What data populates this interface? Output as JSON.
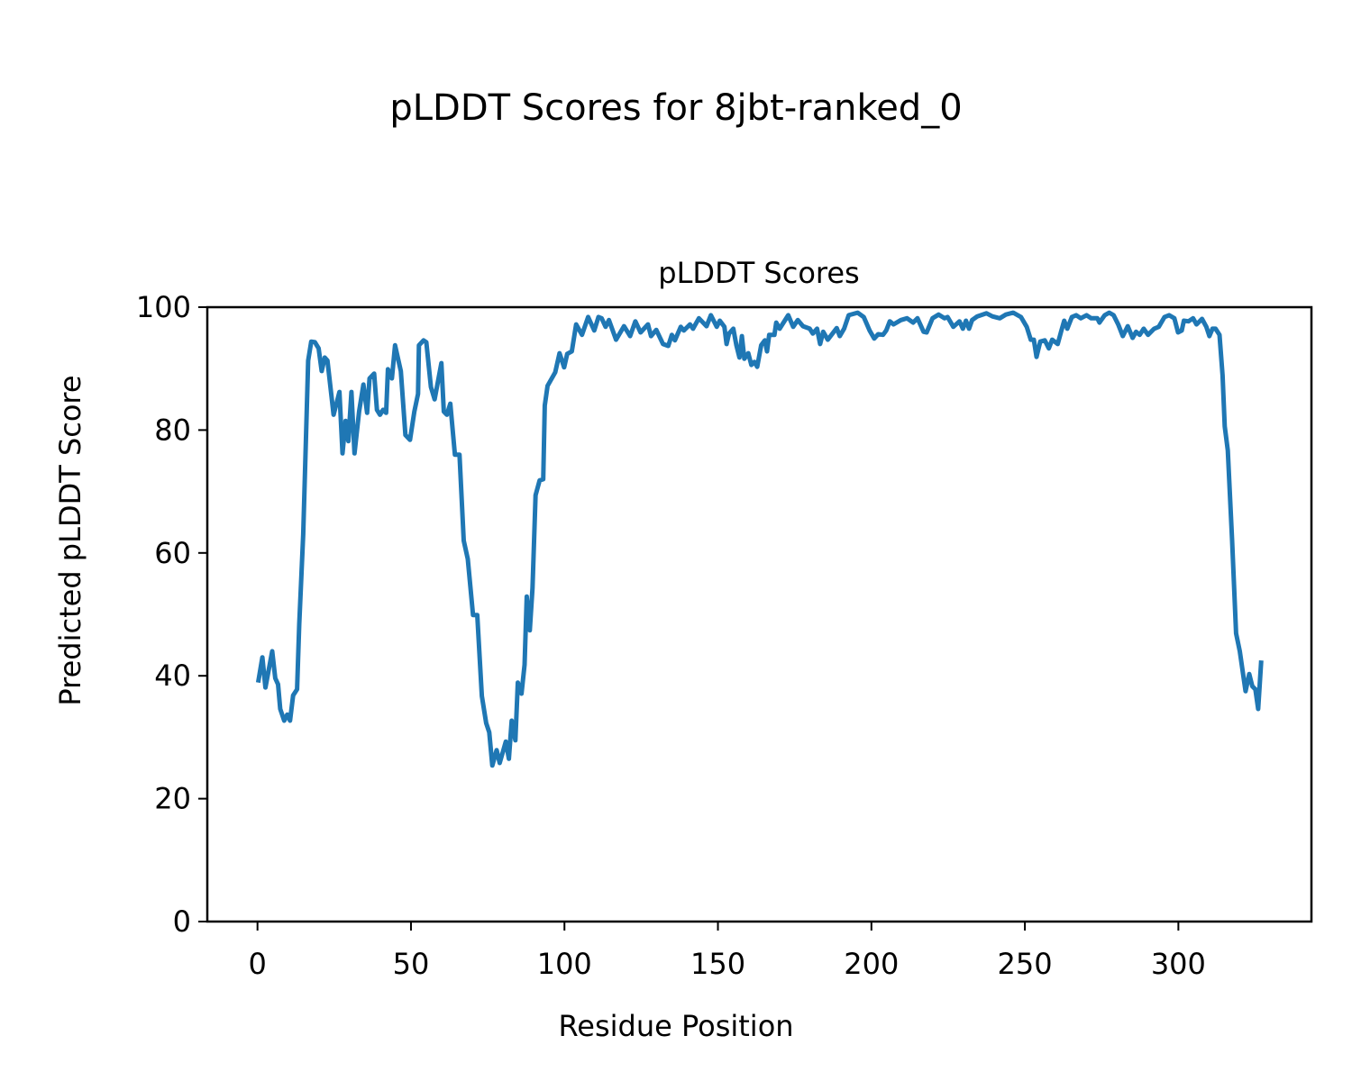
{
  "chart_data": {
    "type": "line",
    "title": "pLDDT Scores for 8jbt-ranked_0",
    "subtitle": "pLDDT Scores",
    "xlabel": "Residue Position",
    "ylabel": "Predicted pLDDT Score",
    "xlim": [
      -16.35,
      343.35
    ],
    "ylim": [
      0,
      100
    ],
    "xticks": [
      "0",
      "50",
      "100",
      "150",
      "200",
      "250",
      "300"
    ],
    "yticks": [
      "0",
      "20",
      "40",
      "60",
      "80",
      "100"
    ],
    "grid": false,
    "color": "#1f77b4",
    "series": [
      {
        "points": [
          [
            0.2,
            38.9
          ],
          [
            1.6,
            43
          ],
          [
            2.6,
            38.1
          ],
          [
            4.8,
            44
          ],
          [
            5.8,
            39.6
          ],
          [
            6.7,
            38.6
          ],
          [
            7.4,
            34.6
          ],
          [
            8.7,
            32.7
          ],
          [
            9.7,
            33.7
          ],
          [
            10.6,
            32.7
          ],
          [
            11.6,
            36.8
          ],
          [
            12.9,
            37.8
          ],
          [
            13.6,
            48.4
          ],
          [
            14.9,
            63
          ],
          [
            16,
            82.5
          ],
          [
            16.5,
            91.3
          ],
          [
            17.5,
            94.4
          ],
          [
            18.7,
            94.3
          ],
          [
            19.9,
            93.3
          ],
          [
            20.9,
            89.6
          ],
          [
            21.9,
            91.8
          ],
          [
            22.8,
            91.3
          ],
          [
            24.8,
            82.5
          ],
          [
            26.7,
            86.2
          ],
          [
            27.7,
            76.2
          ],
          [
            28.7,
            81.5
          ],
          [
            29.6,
            78.2
          ],
          [
            30.6,
            86.2
          ],
          [
            31.6,
            76.2
          ],
          [
            33.1,
            83
          ],
          [
            34.5,
            87.4
          ],
          [
            35.7,
            82.8
          ],
          [
            36.5,
            88.4
          ],
          [
            38,
            89.2
          ],
          [
            38.9,
            83.3
          ],
          [
            39.9,
            82.5
          ],
          [
            40.9,
            83.3
          ],
          [
            41.9,
            82.8
          ],
          [
            42.5,
            89.9
          ],
          [
            43.8,
            88.4
          ],
          [
            44.8,
            93.8
          ],
          [
            46.7,
            89.6
          ],
          [
            48.2,
            79.2
          ],
          [
            49.7,
            78.4
          ],
          [
            51.1,
            83
          ],
          [
            52.3,
            85.9
          ],
          [
            52.6,
            93.8
          ],
          [
            54.1,
            94.6
          ],
          [
            55,
            94.3
          ],
          [
            56.5,
            87
          ],
          [
            57.7,
            85
          ],
          [
            59.9,
            90.9
          ],
          [
            60.7,
            83
          ],
          [
            61.7,
            82.5
          ],
          [
            62.8,
            84.3
          ],
          [
            64.3,
            76
          ],
          [
            65.8,
            76
          ],
          [
            67.2,
            62
          ],
          [
            68.5,
            59
          ],
          [
            70.2,
            49.9
          ],
          [
            71.6,
            49.9
          ],
          [
            73.1,
            36.7
          ],
          [
            74.5,
            32.3
          ],
          [
            75.5,
            30.8
          ],
          [
            76.5,
            25.4
          ],
          [
            77.9,
            27.9
          ],
          [
            78.9,
            25.8
          ],
          [
            80.9,
            29.3
          ],
          [
            81.9,
            26.5
          ],
          [
            82.8,
            32.7
          ],
          [
            84,
            29.5
          ],
          [
            84.8,
            38.9
          ],
          [
            86,
            37.1
          ],
          [
            87,
            41.8
          ],
          [
            87.7,
            52.9
          ],
          [
            88.7,
            47.4
          ],
          [
            89.6,
            54.3
          ],
          [
            90.6,
            69.4
          ],
          [
            91.9,
            71.8
          ],
          [
            93.1,
            72
          ],
          [
            93.6,
            84
          ],
          [
            94.5,
            87.2
          ],
          [
            97,
            89.4
          ],
          [
            98.4,
            92.5
          ],
          [
            99.9,
            90.2
          ],
          [
            100.9,
            92.4
          ],
          [
            102.4,
            92.8
          ],
          [
            103.8,
            97.2
          ],
          [
            105.7,
            95.5
          ],
          [
            107.7,
            98.4
          ],
          [
            109.7,
            96.2
          ],
          [
            111.1,
            98.4
          ],
          [
            112.1,
            98.2
          ],
          [
            113.4,
            96.8
          ],
          [
            114.5,
            97.9
          ],
          [
            116.8,
            94.7
          ],
          [
            119.4,
            96.9
          ],
          [
            121.4,
            95.3
          ],
          [
            123.1,
            97.7
          ],
          [
            124.8,
            95.9
          ],
          [
            127.2,
            97.2
          ],
          [
            128.2,
            95.3
          ],
          [
            129.9,
            96.3
          ],
          [
            132.1,
            94
          ],
          [
            133.8,
            93.7
          ],
          [
            135,
            95.5
          ],
          [
            136,
            94.6
          ],
          [
            137.9,
            96.8
          ],
          [
            138.9,
            96.2
          ],
          [
            140.9,
            97.2
          ],
          [
            141.9,
            96.5
          ],
          [
            143.8,
            98.2
          ],
          [
            146.3,
            96.9
          ],
          [
            147.7,
            98.7
          ],
          [
            149.6,
            96.8
          ],
          [
            150.6,
            97.8
          ],
          [
            152.1,
            96.8
          ],
          [
            152.8,
            94
          ],
          [
            153.6,
            95.7
          ],
          [
            155,
            96.5
          ],
          [
            156,
            93.8
          ],
          [
            157,
            91.8
          ],
          [
            157.8,
            95.3
          ],
          [
            158.6,
            91.6
          ],
          [
            159.9,
            92.5
          ],
          [
            160.9,
            90.6
          ],
          [
            161.9,
            91.1
          ],
          [
            162.8,
            90.3
          ],
          [
            164.1,
            93.8
          ],
          [
            165.3,
            94.6
          ],
          [
            166,
            92.8
          ],
          [
            166.7,
            95.5
          ],
          [
            168.4,
            95.5
          ],
          [
            169,
            97.5
          ],
          [
            170.1,
            96.5
          ],
          [
            172.9,
            98.7
          ],
          [
            174.5,
            96.8
          ],
          [
            176,
            97.9
          ],
          [
            177.7,
            96.9
          ],
          [
            179.9,
            96.5
          ],
          [
            180.9,
            95.7
          ],
          [
            182.3,
            96.5
          ],
          [
            183.3,
            94
          ],
          [
            184.3,
            96
          ],
          [
            185.8,
            94.7
          ],
          [
            188.7,
            96.6
          ],
          [
            189.7,
            95.3
          ],
          [
            191.1,
            96.5
          ],
          [
            192.6,
            98.7
          ],
          [
            195.5,
            99.1
          ],
          [
            197.5,
            98.4
          ],
          [
            199.4,
            96.2
          ],
          [
            200.9,
            94.9
          ],
          [
            202.2,
            95.6
          ],
          [
            203.8,
            95.5
          ],
          [
            204.8,
            96.2
          ],
          [
            206,
            97.7
          ],
          [
            207.2,
            97.2
          ],
          [
            209.6,
            97.9
          ],
          [
            211.6,
            98.2
          ],
          [
            213.6,
            97.5
          ],
          [
            215,
            98.2
          ],
          [
            217,
            96
          ],
          [
            218,
            95.9
          ],
          [
            219.9,
            98.2
          ],
          [
            221.9,
            98.8
          ],
          [
            223.8,
            98.2
          ],
          [
            224.8,
            98.4
          ],
          [
            226.7,
            96.8
          ],
          [
            228.7,
            97.7
          ],
          [
            229.8,
            96.5
          ],
          [
            230.8,
            97.8
          ],
          [
            231.8,
            96.5
          ],
          [
            232.8,
            97.9
          ],
          [
            234.5,
            98.5
          ],
          [
            237.5,
            99
          ],
          [
            239.4,
            98.5
          ],
          [
            241.8,
            98.2
          ],
          [
            243.8,
            98.8
          ],
          [
            246.2,
            99.1
          ],
          [
            248.7,
            98.4
          ],
          [
            250.6,
            96.8
          ],
          [
            251.9,
            94.7
          ],
          [
            252.9,
            94.7
          ],
          [
            253.8,
            91.9
          ],
          [
            255,
            94.4
          ],
          [
            256.5,
            94.6
          ],
          [
            257.8,
            93.3
          ],
          [
            258.9,
            94.7
          ],
          [
            260.7,
            94
          ],
          [
            261.9,
            96.2
          ],
          [
            262.8,
            97.8
          ],
          [
            263.8,
            96.5
          ],
          [
            265.3,
            98.4
          ],
          [
            266.7,
            98.7
          ],
          [
            268.2,
            98.2
          ],
          [
            270.1,
            98.7
          ],
          [
            271.6,
            98.2
          ],
          [
            273.6,
            98.2
          ],
          [
            274.3,
            97.5
          ],
          [
            276,
            98.7
          ],
          [
            277.5,
            99.1
          ],
          [
            278.9,
            98.7
          ],
          [
            280.4,
            97.2
          ],
          [
            281.9,
            95.3
          ],
          [
            283.5,
            96.9
          ],
          [
            285.1,
            95
          ],
          [
            286.2,
            96
          ],
          [
            287.4,
            95.5
          ],
          [
            288.7,
            96.5
          ],
          [
            290.1,
            95.5
          ],
          [
            292.1,
            96.5
          ],
          [
            293.6,
            96.8
          ],
          [
            295.5,
            98.4
          ],
          [
            297,
            98.7
          ],
          [
            298.7,
            98.2
          ],
          [
            299.9,
            95.9
          ],
          [
            301.1,
            96.2
          ],
          [
            301.8,
            97.8
          ],
          [
            303.3,
            97.7
          ],
          [
            304.8,
            98.2
          ],
          [
            305.9,
            97.2
          ],
          [
            307.7,
            98.1
          ],
          [
            309.1,
            96.8
          ],
          [
            310.1,
            95.3
          ],
          [
            311.1,
            96.5
          ],
          [
            312.1,
            96.5
          ],
          [
            313.4,
            95.5
          ],
          [
            314.4,
            88.9
          ],
          [
            315.1,
            80.6
          ],
          [
            316.1,
            76.7
          ],
          [
            317.5,
            62
          ],
          [
            318.8,
            46.9
          ],
          [
            320,
            44
          ],
          [
            321.9,
            37.5
          ],
          [
            323.1,
            40.3
          ],
          [
            324.1,
            38.3
          ],
          [
            325.1,
            37.8
          ],
          [
            326,
            34.6
          ],
          [
            327,
            42.5
          ]
        ]
      }
    ]
  }
}
